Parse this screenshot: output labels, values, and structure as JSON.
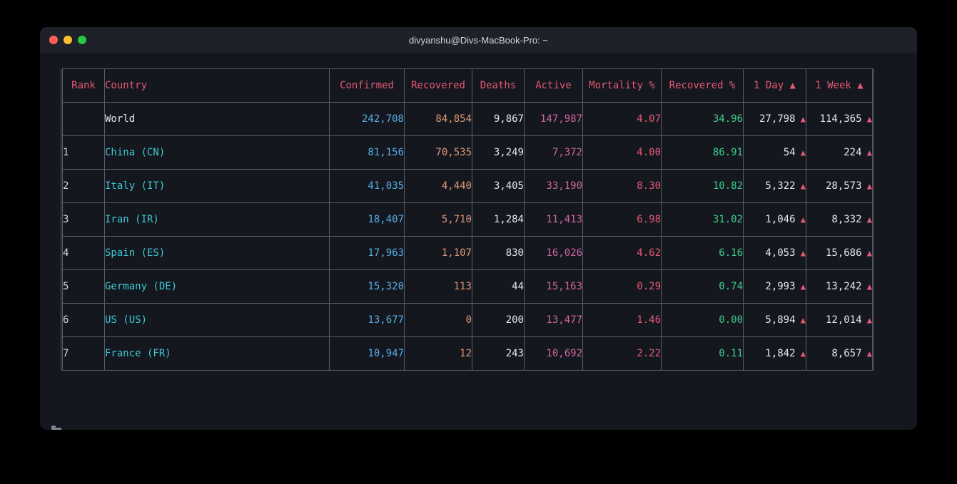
{
  "window": {
    "title": "divyanshu@Divs-MacBook-Pro: ~"
  },
  "terminal": {
    "table": {
      "arrow_glyph": "▲",
      "columns": [
        {
          "key": "rank",
          "label": "Rank"
        },
        {
          "key": "country",
          "label": "Country"
        },
        {
          "key": "confirmed",
          "label": "Confirmed"
        },
        {
          "key": "recovered",
          "label": "Recovered"
        },
        {
          "key": "deaths",
          "label": "Deaths"
        },
        {
          "key": "active",
          "label": "Active"
        },
        {
          "key": "mortality",
          "label": "Mortality %"
        },
        {
          "key": "recovered_pct",
          "label": "Recovered %"
        },
        {
          "key": "day",
          "label": "1 Day ▲",
          "arrow": true
        },
        {
          "key": "week",
          "label": "1 Week ▲",
          "arrow": true
        }
      ],
      "rows": [
        {
          "rank": "",
          "country": "World",
          "confirmed": "242,708",
          "recovered": "84,854",
          "deaths": "9,867",
          "active": "147,987",
          "mortality": "4.07",
          "recovered_pct": "34.96",
          "day": "27,798",
          "week": "114,365"
        },
        {
          "rank": "1",
          "country": "China (CN)",
          "confirmed": "81,156",
          "recovered": "70,535",
          "deaths": "3,249",
          "active": "7,372",
          "mortality": "4.00",
          "recovered_pct": "86.91",
          "day": "54",
          "week": "224"
        },
        {
          "rank": "2",
          "country": "Italy (IT)",
          "confirmed": "41,035",
          "recovered": "4,440",
          "deaths": "3,405",
          "active": "33,190",
          "mortality": "8.30",
          "recovered_pct": "10.82",
          "day": "5,322",
          "week": "28,573"
        },
        {
          "rank": "3",
          "country": "Iran (IR)",
          "confirmed": "18,407",
          "recovered": "5,710",
          "deaths": "1,284",
          "active": "11,413",
          "mortality": "6.98",
          "recovered_pct": "31.02",
          "day": "1,046",
          "week": "8,332"
        },
        {
          "rank": "4",
          "country": "Spain (ES)",
          "confirmed": "17,963",
          "recovered": "1,107",
          "deaths": "830",
          "active": "16,026",
          "mortality": "4.62",
          "recovered_pct": "6.16",
          "day": "4,053",
          "week": "15,686"
        },
        {
          "rank": "5",
          "country": "Germany (DE)",
          "confirmed": "15,320",
          "recovered": "113",
          "deaths": "44",
          "active": "15,163",
          "mortality": "0.29",
          "recovered_pct": "0.74",
          "day": "2,993",
          "week": "13,242"
        },
        {
          "rank": "6",
          "country": "US (US)",
          "confirmed": "13,677",
          "recovered": "0",
          "deaths": "200",
          "active": "13,477",
          "mortality": "1.46",
          "recovered_pct": "0.00",
          "day": "5,894",
          "week": "12,014"
        },
        {
          "rank": "7",
          "country": "France (FR)",
          "confirmed": "10,947",
          "recovered": "12",
          "deaths": "243",
          "active": "10,692",
          "mortality": "2.22",
          "recovered_pct": "0.11",
          "day": "1,842",
          "week": "8,657"
        }
      ]
    },
    "status": {
      "path": "~",
      "icon": "folder-icon"
    }
  },
  "colors": {
    "page_bg": "#000000",
    "terminal_bg": "#15171e",
    "titlebar_bg": "#1e212a",
    "title_text": "#d6d7db",
    "border": "#585d70",
    "header": "#e35874",
    "rank": "#d5d7dc",
    "country": "#3cc8d4",
    "confirmed": "#55aee6",
    "recovered": "#dd9878",
    "deaths": "#e6e7eb",
    "active": "#cf66a2",
    "mortality": "#e35874",
    "recovered_pct": "#3cce8c",
    "day": "#e6e7eb",
    "arrow": "#e35874",
    "status_text": "#9da0a8",
    "folder": "#7d818b",
    "light_close": "#ff5f57",
    "light_min": "#febc2e",
    "light_zoom": "#28c840"
  }
}
